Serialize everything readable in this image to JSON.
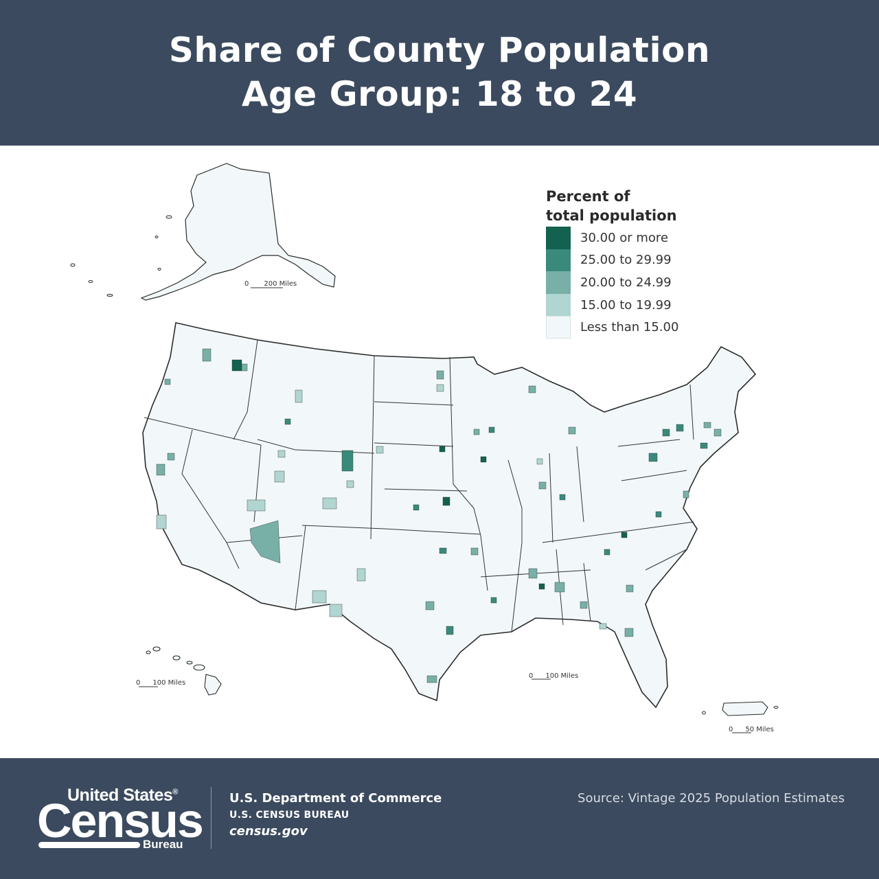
{
  "header": {
    "title_line1": "Share of County Population",
    "title_line2": "Age Group: 18 to 24"
  },
  "legend": {
    "title_line1": "Percent of",
    "title_line2": "total population",
    "classes": [
      {
        "label": "30.00 or more",
        "color": "#13614f"
      },
      {
        "label": "25.00 to 29.99",
        "color": "#3a8a7c"
      },
      {
        "label": "20.00 to 24.99",
        "color": "#78b0a8"
      },
      {
        "label": "15.00 to 19.99",
        "color": "#b1d5d1"
      },
      {
        "label": "Less than 15.00",
        "color": "#f2f8f9"
      }
    ]
  },
  "scale_bars": {
    "alaska": {
      "zero": "0",
      "distance": "200 Miles"
    },
    "hawaii": {
      "zero": "0",
      "distance": "100 Miles"
    },
    "conus": {
      "zero": "0",
      "distance": "100 Miles"
    },
    "puerto_rico": {
      "zero": "0",
      "distance": "50 Miles"
    }
  },
  "footer": {
    "logo_line1": "United States",
    "logo_registered": "®",
    "logo_big": "Census",
    "logo_small": "Bureau",
    "department": "U.S. Department of Commerce",
    "bureau": "U.S. CENSUS BUREAU",
    "website": "census.gov",
    "source": "Source: Vintage 2025 Population Estimates"
  },
  "colors": {
    "banner": "#3b4a5e",
    "base_fill": "#f2f8f9",
    "outline": "#2b2b2b"
  }
}
